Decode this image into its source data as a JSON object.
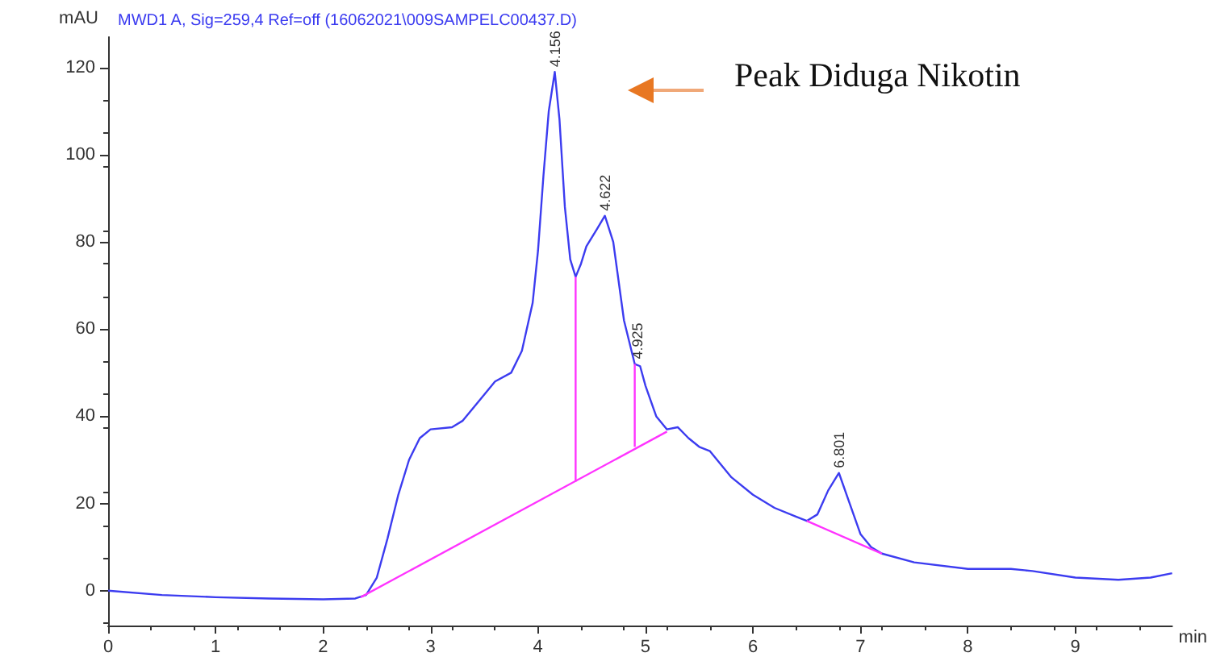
{
  "chart_data": {
    "type": "line",
    "title": "MWD1 A, Sig=259,4 Ref=off (16062021\\009SAMPELC00437.D)",
    "xlabel": "min",
    "ylabel": "mAU",
    "xlim": [
      0,
      9.9
    ],
    "ylim": [
      -8,
      127
    ],
    "xticks": [
      0,
      1,
      2,
      3,
      4,
      5,
      6,
      7,
      8,
      9
    ],
    "yticks": [
      0,
      20,
      40,
      60,
      80,
      100,
      120
    ],
    "x": [
      0,
      0.5,
      1,
      1.5,
      2,
      2.3,
      2.4,
      2.5,
      2.6,
      2.7,
      2.8,
      2.9,
      3.0,
      3.2,
      3.3,
      3.5,
      3.6,
      3.75,
      3.85,
      3.95,
      4.0,
      4.05,
      4.1,
      4.156,
      4.2,
      4.25,
      4.3,
      4.35,
      4.4,
      4.45,
      4.55,
      4.622,
      4.7,
      4.8,
      4.9,
      4.95,
      5.0,
      5.1,
      5.2,
      5.3,
      5.4,
      5.5,
      5.6,
      5.8,
      6.0,
      6.2,
      6.4,
      6.5,
      6.6,
      6.7,
      6.8,
      6.9,
      7.0,
      7.1,
      7.2,
      7.5,
      8.0,
      8.4,
      8.6,
      9.0,
      9.4,
      9.7,
      9.9
    ],
    "series": [
      {
        "color": "#3c3cf0",
        "values": [
          0,
          -1,
          -1.5,
          -1.8,
          -2,
          -1.8,
          -1,
          3,
          12,
          22,
          30,
          35,
          37,
          37.5,
          39,
          45,
          48,
          50,
          55,
          66,
          78,
          95,
          110,
          119,
          108,
          88,
          76,
          72,
          75,
          79,
          83,
          86,
          80,
          62,
          52,
          51.5,
          47,
          40,
          37,
          37.5,
          35,
          33,
          32,
          26,
          22,
          19,
          17,
          16,
          17.5,
          23,
          27,
          20,
          13,
          10,
          8.5,
          6.5,
          5,
          5,
          4.5,
          3,
          2.5,
          3,
          4
        ]
      },
      {
        "type": "line",
        "color": "#ff33ff",
        "x": [
          2.35,
          5.2
        ],
        "values": [
          -1.5,
          36.5
        ]
      },
      {
        "type": "line",
        "color": "#ff33ff",
        "x": [
          4.35,
          4.35
        ],
        "values": [
          25,
          72
        ]
      },
      {
        "type": "line",
        "color": "#ff33ff",
        "x": [
          4.9,
          4.9
        ],
        "values": [
          33,
          52
        ]
      },
      {
        "type": "line",
        "color": "#ff33ff",
        "x": [
          6.5,
          7.2
        ],
        "values": [
          16,
          8.5
        ]
      }
    ],
    "annotations": [
      {
        "text": "4.156",
        "x": 4.156,
        "y": 119
      },
      {
        "text": "4.622",
        "x": 4.622,
        "y": 86
      },
      {
        "text": "4.925",
        "x": 4.925,
        "y": 52
      },
      {
        "text": "6.801",
        "x": 6.801,
        "y": 27
      },
      "Peak Diduga Nikotin"
    ]
  }
}
